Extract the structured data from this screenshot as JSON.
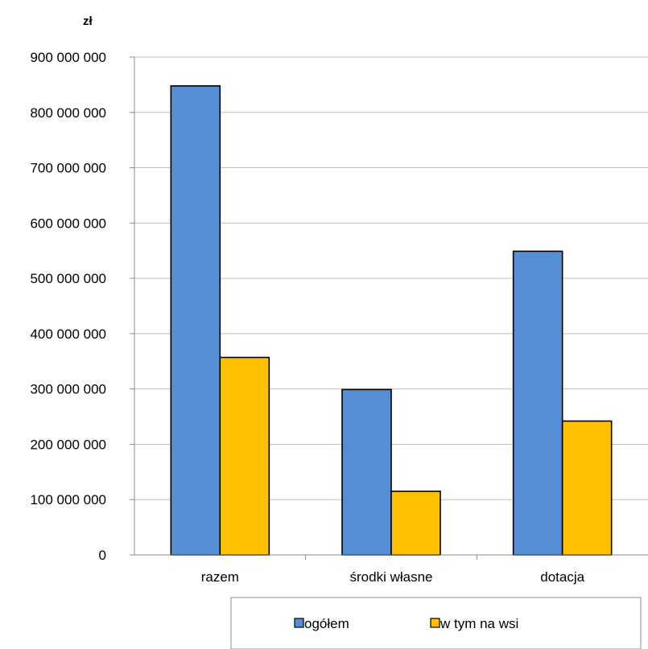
{
  "chart_data": {
    "type": "bar",
    "unit_label": "zł",
    "categories": [
      "razem",
      "środki własne",
      "dotacja"
    ],
    "series": [
      {
        "name": "ogółem",
        "values": [
          848000000,
          299000000,
          549000000
        ],
        "color": "#558ed5"
      },
      {
        "name": "w tym na wsi",
        "values": [
          357000000,
          115000000,
          242000000
        ],
        "color": "#ffc000"
      }
    ],
    "ylim": [
      0,
      900000000
    ],
    "y_ticks": [
      0,
      100000000,
      200000000,
      300000000,
      400000000,
      500000000,
      600000000,
      700000000,
      800000000,
      900000000
    ],
    "y_tick_labels": [
      "0",
      "100 000 000",
      "200 000 000",
      "300 000 000",
      "400 000 000",
      "500 000 000",
      "600 000 000",
      "700 000 000",
      "800 000 000",
      "900 000 000"
    ],
    "grid": true,
    "legend": "bottom"
  }
}
